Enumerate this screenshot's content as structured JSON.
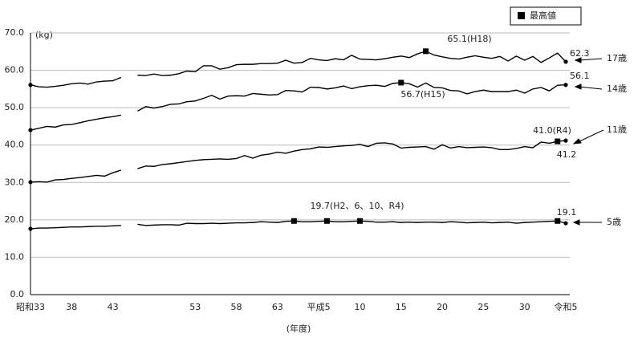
{
  "chart_data": {
    "type": "line",
    "y_unit_label": "(kg)",
    "x_label": "(年度)",
    "legend_label": "最高値",
    "categories": [
      "昭和33",
      null,
      null,
      null,
      null,
      "38",
      null,
      null,
      null,
      null,
      "43",
      null,
      null,
      null,
      null,
      null,
      null,
      null,
      null,
      null,
      "53",
      null,
      null,
      null,
      null,
      "58",
      null,
      null,
      null,
      null,
      "63",
      null,
      null,
      null,
      null,
      "平成5",
      null,
      null,
      null,
      null,
      "10",
      null,
      null,
      null,
      null,
      "15",
      null,
      null,
      null,
      null,
      "20",
      null,
      null,
      null,
      null,
      "25",
      null,
      null,
      null,
      null,
      "30",
      null,
      null,
      null,
      null,
      "令和5"
    ],
    "series": [
      {
        "name": "17歳",
        "color": "#000000",
        "highlight": [
          48
        ],
        "values": [
          56.1,
          55.6,
          55.5,
          55.7,
          56.0,
          56.4,
          56.6,
          56.3,
          56.9,
          57.1,
          57.2,
          58.1,
          null,
          58.7,
          58.6,
          59.0,
          58.6,
          58.7,
          59.1,
          59.8,
          59.6,
          61.2,
          61.2,
          60.3,
          60.7,
          61.5,
          61.6,
          61.6,
          61.8,
          61.8,
          61.9,
          62.7,
          61.9,
          62.1,
          63.2,
          62.8,
          62.6,
          63.1,
          62.8,
          64.0,
          63.0,
          62.9,
          62.8,
          63.1,
          63.5,
          63.8,
          63.4,
          64.4,
          65.1,
          64.1,
          63.6,
          63.2,
          63.0,
          63.5,
          63.9,
          63.5,
          63.2,
          63.7,
          62.5,
          63.8,
          62.7,
          63.7,
          62.1,
          63.3,
          64.6,
          62.3
        ]
      },
      {
        "name": "14歳",
        "color": "#000000",
        "highlight": [
          45
        ],
        "values": [
          44.0,
          44.5,
          45.0,
          44.8,
          45.4,
          45.5,
          46.0,
          46.5,
          46.9,
          47.3,
          47.6,
          48.0,
          null,
          49.1,
          50.3,
          49.9,
          50.3,
          50.9,
          51.0,
          51.6,
          51.8,
          52.5,
          53.3,
          52.3,
          53.1,
          53.2,
          53.1,
          53.8,
          53.6,
          53.4,
          53.5,
          54.6,
          54.5,
          54.2,
          55.5,
          55.4,
          55.0,
          55.3,
          55.8,
          55.1,
          55.6,
          55.9,
          56.0,
          55.7,
          56.5,
          56.7,
          56.4,
          55.5,
          56.6,
          55.4,
          55.3,
          54.6,
          54.5,
          53.7,
          54.3,
          54.7,
          54.3,
          54.3,
          54.3,
          54.7,
          53.9,
          55.0,
          55.4,
          54.5,
          56.0,
          56.1
        ]
      },
      {
        "name": "11歳",
        "color": "#000000",
        "highlight": [
          64
        ],
        "values": [
          30.1,
          30.2,
          30.1,
          30.7,
          30.8,
          31.1,
          31.3,
          31.6,
          31.9,
          31.7,
          32.6,
          33.3,
          null,
          33.7,
          34.4,
          34.3,
          34.8,
          35.0,
          35.3,
          35.6,
          35.9,
          36.1,
          36.2,
          36.3,
          36.2,
          36.4,
          37.2,
          36.5,
          37.3,
          37.6,
          38.1,
          37.8,
          38.4,
          38.8,
          39.0,
          39.5,
          39.4,
          39.6,
          39.8,
          39.9,
          40.2,
          39.6,
          40.5,
          40.6,
          40.3,
          39.2,
          39.4,
          39.5,
          39.6,
          38.9,
          40.1,
          39.2,
          39.6,
          39.3,
          39.4,
          39.5,
          39.3,
          38.8,
          38.8,
          39.1,
          39.6,
          39.3,
          40.8,
          40.5,
          41.0,
          41.2
        ]
      },
      {
        "name": "5歳",
        "color": "#000000",
        "highlight": [
          32,
          36,
          40,
          64
        ],
        "values": [
          17.6,
          17.8,
          17.8,
          17.9,
          18.0,
          18.1,
          18.1,
          18.2,
          18.3,
          18.3,
          18.4,
          18.5,
          null,
          18.8,
          18.5,
          18.6,
          18.7,
          18.7,
          18.6,
          19.1,
          19.0,
          19.0,
          19.1,
          19.0,
          19.1,
          19.2,
          19.2,
          19.3,
          19.5,
          19.4,
          19.3,
          19.6,
          19.7,
          19.5,
          19.5,
          19.6,
          19.7,
          19.5,
          19.5,
          19.6,
          19.7,
          19.6,
          19.4,
          19.4,
          19.5,
          19.3,
          19.4,
          19.3,
          19.4,
          19.4,
          19.3,
          19.5,
          19.4,
          19.2,
          19.3,
          19.4,
          19.2,
          19.3,
          19.4,
          19.1,
          19.3,
          19.4,
          19.5,
          19.6,
          19.7,
          19.1
        ]
      }
    ],
    "annotations": [
      "65.1(H18)",
      "62.3",
      "56.1",
      "56.7(H15)",
      "41.0(R4)",
      "41.2",
      "19.7(H2、6、10、R4)",
      "19.1"
    ],
    "ylim": [
      0,
      70
    ],
    "yticks": [
      {
        "value": 0,
        "label": "0.0"
      },
      {
        "value": 10,
        "label": "10.0"
      },
      {
        "value": 20,
        "label": "20.0"
      },
      {
        "value": 30,
        "label": "30.0"
      },
      {
        "value": 40,
        "label": "40.0"
      },
      {
        "value": 50,
        "label": "50.0"
      },
      {
        "value": 60,
        "label": "60.0"
      },
      {
        "value": 70,
        "label": "70.0"
      }
    ],
    "grid": true
  }
}
